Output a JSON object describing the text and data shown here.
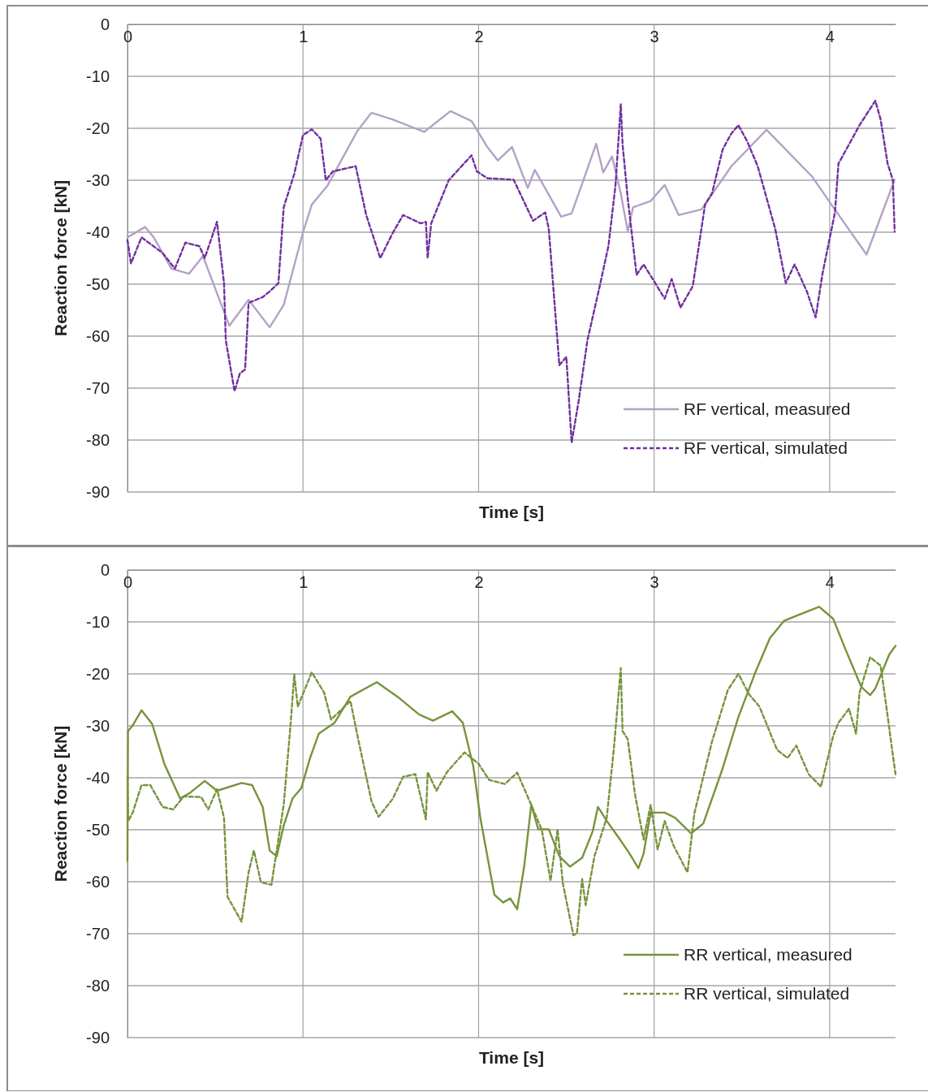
{
  "chart_data": [
    {
      "type": "line",
      "xlabel": "Time [s]",
      "ylabel": "Reaction force [kN]",
      "xlim": [
        0,
        4.375
      ],
      "ylim": [
        -90,
        0
      ],
      "xticks": [
        0,
        1,
        2,
        3,
        4
      ],
      "yticks": [
        0,
        -10,
        -20,
        -30,
        -40,
        -50,
        -60,
        -70,
        -80,
        -90
      ],
      "grid": true,
      "legend": "bottom right",
      "marker": "none",
      "series": [
        {
          "name": "RF vertical, measured",
          "color": "#b3a2c7",
          "line_style": "solid",
          "x": [
            0,
            0.1,
            0.15,
            0.25,
            0.35,
            0.43,
            0.58,
            0.69,
            0.81,
            0.89,
            1.0,
            1.05,
            1.14,
            1.31,
            1.39,
            1.51,
            1.69,
            1.84,
            1.96,
            2.05,
            2.11,
            2.19,
            2.28,
            2.32,
            2.47,
            2.53,
            2.67,
            2.71,
            2.76,
            2.81,
            2.85,
            2.88,
            2.98,
            3.06,
            3.14,
            3.27,
            3.44,
            3.64,
            3.9,
            4.01,
            4.21,
            4.37
          ],
          "values": [
            -41,
            -39,
            -41,
            -47,
            -48,
            -44.6,
            -58,
            -53,
            -58.3,
            -54,
            -40,
            -34.7,
            -31,
            -20.5,
            -17,
            -18.3,
            -20.7,
            -16.7,
            -18.6,
            -23.6,
            -26.2,
            -23.6,
            -31.5,
            -28,
            -37,
            -36.4,
            -23,
            -28.5,
            -25.4,
            -32.5,
            -39.9,
            -35.2,
            -34,
            -30.9,
            -36.7,
            -35.6,
            -27.3,
            -20.3,
            -29.3,
            -34.7,
            -44.3,
            -29.9
          ]
        },
        {
          "name": "RF vertical, simulated",
          "color": "#7030a0",
          "line_style": "dashed",
          "x": [
            0,
            0.02,
            0.08,
            0.2,
            0.27,
            0.33,
            0.41,
            0.44,
            0.51,
            0.55,
            0.56,
            0.61,
            0.64,
            0.67,
            0.69,
            0.77,
            0.81,
            0.86,
            0.89,
            0.95,
            1.0,
            1.05,
            1.1,
            1.13,
            1.17,
            1.3,
            1.36,
            1.44,
            1.51,
            1.57,
            1.67,
            1.7,
            1.71,
            1.73,
            1.83,
            1.96,
            1.99,
            2.05,
            2.2,
            2.31,
            2.38,
            2.4,
            2.46,
            2.5,
            2.53,
            2.57,
            2.62,
            2.69,
            2.74,
            2.78,
            2.81,
            2.82,
            2.85,
            2.9,
            2.94,
            2.99,
            3.06,
            3.1,
            3.15,
            3.22,
            3.29,
            3.33,
            3.39,
            3.44,
            3.48,
            3.53,
            3.59,
            3.69,
            3.75,
            3.8,
            3.87,
            3.92,
            3.96,
            4.03,
            4.05,
            4.12,
            4.17,
            4.21,
            4.26,
            4.29,
            4.33,
            4.36,
            4.37
          ],
          "values": [
            -41.5,
            -46,
            -41,
            -44,
            -47,
            -42,
            -42.7,
            -45,
            -38,
            -49.8,
            -60.8,
            -70.6,
            -67.2,
            -66.4,
            -53.6,
            -52.5,
            -51.4,
            -49.8,
            -35.2,
            -28.8,
            -21.3,
            -20.2,
            -22,
            -30,
            -28.3,
            -27.3,
            -36.7,
            -45,
            -40.2,
            -36.7,
            -38.3,
            -38,
            -45,
            -38.3,
            -30,
            -25.2,
            -28.3,
            -29.6,
            -29.9,
            -37.8,
            -36.2,
            -39.4,
            -65.6,
            -64,
            -80.5,
            -72.5,
            -60.8,
            -50.4,
            -42.6,
            -30.9,
            -15.4,
            -23,
            -33.6,
            -48.2,
            -46.2,
            -48.9,
            -52.8,
            -49,
            -54.5,
            -50.4,
            -34.7,
            -32.5,
            -24.1,
            -21,
            -19.4,
            -22.5,
            -27.3,
            -39.4,
            -49.8,
            -46.2,
            -51.4,
            -56.4,
            -47.8,
            -36.2,
            -26.8,
            -22.5,
            -19.4,
            -17.3,
            -14.7,
            -18.3,
            -26.8,
            -30,
            -39.9
          ]
        }
      ]
    },
    {
      "type": "line",
      "xlabel": "Time [s]",
      "ylabel": "Reaction force [kN]",
      "xlim": [
        0,
        4.375
      ],
      "ylim": [
        -90,
        0
      ],
      "xticks": [
        0,
        1,
        2,
        3,
        4
      ],
      "yticks": [
        0,
        -10,
        -20,
        -30,
        -40,
        -50,
        -60,
        -70,
        -80,
        -90
      ],
      "grid": true,
      "legend": "bottom right",
      "marker": "none",
      "series": [
        {
          "name": "RR vertical, measured",
          "color": "#77933c",
          "line_style": "solid",
          "x": [
            0,
            0.003,
            0.03,
            0.08,
            0.14,
            0.21,
            0.3,
            0.36,
            0.44,
            0.51,
            0.65,
            0.71,
            0.77,
            0.81,
            0.85,
            0.89,
            0.94,
            0.99,
            1.04,
            1.09,
            1.18,
            1.27,
            1.42,
            1.55,
            1.66,
            1.74,
            1.85,
            1.91,
            1.97,
            2.01,
            2.09,
            2.14,
            2.18,
            2.22,
            2.26,
            2.3,
            2.34,
            2.4,
            2.46,
            2.52,
            2.59,
            2.65,
            2.68,
            2.73,
            2.8,
            2.86,
            2.91,
            2.94,
            2.98,
            3.06,
            3.12,
            3.21,
            3.28,
            3.39,
            3.48,
            3.58,
            3.66,
            3.74,
            3.82,
            3.94,
            4.02,
            4.09,
            4.18,
            4.23,
            4.26,
            4.34,
            4.375
          ],
          "values": [
            -56,
            -31,
            -29.9,
            -27,
            -29.6,
            -37.3,
            -44,
            -42.8,
            -40.6,
            -42.5,
            -41,
            -41.4,
            -45.6,
            -54,
            -55.1,
            -49.2,
            -44,
            -42,
            -36.2,
            -31.5,
            -29.4,
            -24.4,
            -21.6,
            -24.7,
            -27.8,
            -29,
            -27.2,
            -29.4,
            -37.8,
            -47.7,
            -62.5,
            -64,
            -63.2,
            -65.3,
            -57,
            -45.2,
            -49.9,
            -49.9,
            -55.1,
            -57.1,
            -55.4,
            -50.3,
            -45.6,
            -48.3,
            -51.6,
            -54.6,
            -57.4,
            -54.6,
            -46.7,
            -46.7,
            -47.7,
            -50.7,
            -48.8,
            -38.2,
            -28.3,
            -19.4,
            -13.1,
            -9.8,
            -8.7,
            -7.1,
            -9.4,
            -15.3,
            -22.5,
            -24.1,
            -22.8,
            -16.2,
            -14.6
          ]
        },
        {
          "name": "RR vertical, simulated",
          "color": "#77933c",
          "line_style": "dashed",
          "x": [
            0,
            0.005,
            0.03,
            0.08,
            0.13,
            0.2,
            0.26,
            0.32,
            0.42,
            0.46,
            0.51,
            0.55,
            0.57,
            0.65,
            0.69,
            0.72,
            0.76,
            0.82,
            0.89,
            0.93,
            0.95,
            0.97,
            1.05,
            1.12,
            1.16,
            1.27,
            1.31,
            1.39,
            1.43,
            1.51,
            1.57,
            1.64,
            1.7,
            1.71,
            1.76,
            1.82,
            1.92,
            2.0,
            2.06,
            2.15,
            2.22,
            2.3,
            2.36,
            2.41,
            2.45,
            2.48,
            2.54,
            2.56,
            2.59,
            2.61,
            2.66,
            2.73,
            2.77,
            2.81,
            2.82,
            2.85,
            2.89,
            2.94,
            2.98,
            3.02,
            3.06,
            3.11,
            3.19,
            3.23,
            3.33,
            3.42,
            3.48,
            3.54,
            3.6,
            3.7,
            3.76,
            3.81,
            3.88,
            3.95,
            4.02,
            4.05,
            4.11,
            4.15,
            4.17,
            4.23,
            4.29,
            4.32,
            4.36,
            4.375
          ],
          "values": [
            -39.8,
            -48.3,
            -46.7,
            -41.4,
            -41.4,
            -45.6,
            -46.1,
            -43.6,
            -43.7,
            -46.1,
            -42.2,
            -47.7,
            -62.9,
            -67.7,
            -58.2,
            -54,
            -60.1,
            -60.6,
            -45.2,
            -29.4,
            -20.1,
            -26.3,
            -19.7,
            -23.6,
            -28.8,
            -25.2,
            -31.9,
            -44.5,
            -47.5,
            -44.1,
            -39.8,
            -39.3,
            -48,
            -38.9,
            -42.5,
            -38.9,
            -35.1,
            -37.3,
            -40.4,
            -41.2,
            -39,
            -45.2,
            -50,
            -59.8,
            -49.9,
            -60.3,
            -70.3,
            -70,
            -59.5,
            -64.5,
            -55.1,
            -47.7,
            -34.6,
            -18.9,
            -31,
            -32.6,
            -43,
            -51.9,
            -45.2,
            -53.8,
            -48.3,
            -53,
            -58.2,
            -46.7,
            -33,
            -23.1,
            -20,
            -23.9,
            -26.3,
            -34.6,
            -36.2,
            -33.8,
            -39.3,
            -41.7,
            -31.9,
            -29.4,
            -26.7,
            -31.5,
            -23.6,
            -16.8,
            -18.4,
            -25.6,
            -35.7,
            -39.3
          ]
        }
      ]
    }
  ]
}
